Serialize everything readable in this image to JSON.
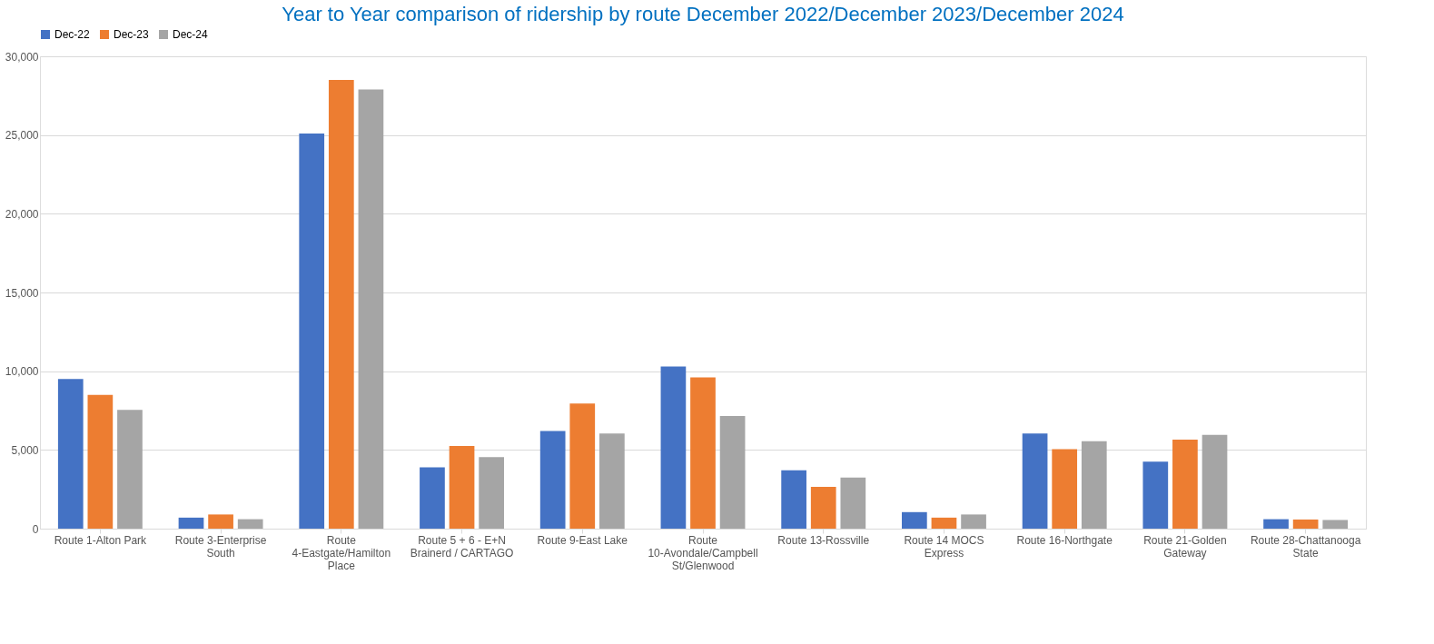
{
  "chart_data": {
    "type": "bar",
    "title": "Year to Year comparison of ridership by route December 2022/December 2023/December 2024",
    "categories": [
      "Route 1-Alton Park",
      "Route 3-Enterprise South",
      "Route 4-Eastgate/Hamilton Place",
      "Route 5 + 6 - E+N Brainerd / CARTAGO",
      "Route 9-East Lake",
      "Route 10-Avondale/Campbell St/Glenwood",
      "Route 13-Rossville",
      "Route 14 MOCS Express",
      "Route 16-Northgate",
      "Route 21-Golden Gateway",
      "Route 28-Chattanooga State"
    ],
    "series": [
      {
        "name": "Dec-22",
        "color": "#4472c4",
        "values": [
          9500,
          700,
          25100,
          3900,
          6200,
          10300,
          3700,
          1050,
          6050,
          4250,
          600
        ]
      },
      {
        "name": "Dec-23",
        "color": "#ed7d31",
        "values": [
          8500,
          900,
          28500,
          5250,
          7950,
          9600,
          2650,
          700,
          5050,
          5650,
          580
        ]
      },
      {
        "name": "Dec-24",
        "color": "#a5a5a5",
        "values": [
          7550,
          600,
          27900,
          4550,
          6050,
          7150,
          3250,
          900,
          5550,
          5950,
          550
        ]
      }
    ],
    "ylim": [
      0,
      30000
    ],
    "yticks": [
      0,
      {
        "value": 5000,
        "label": "5,000"
      },
      {
        "value": 10000,
        "label": "10,000"
      },
      {
        "value": 15000,
        "label": "15,000"
      },
      {
        "value": 20000,
        "label": "20,000"
      },
      {
        "value": 25000,
        "label": "25,000"
      },
      {
        "value": 30000,
        "label": "30,000"
      }
    ],
    "grid": "y",
    "legend": "top"
  }
}
